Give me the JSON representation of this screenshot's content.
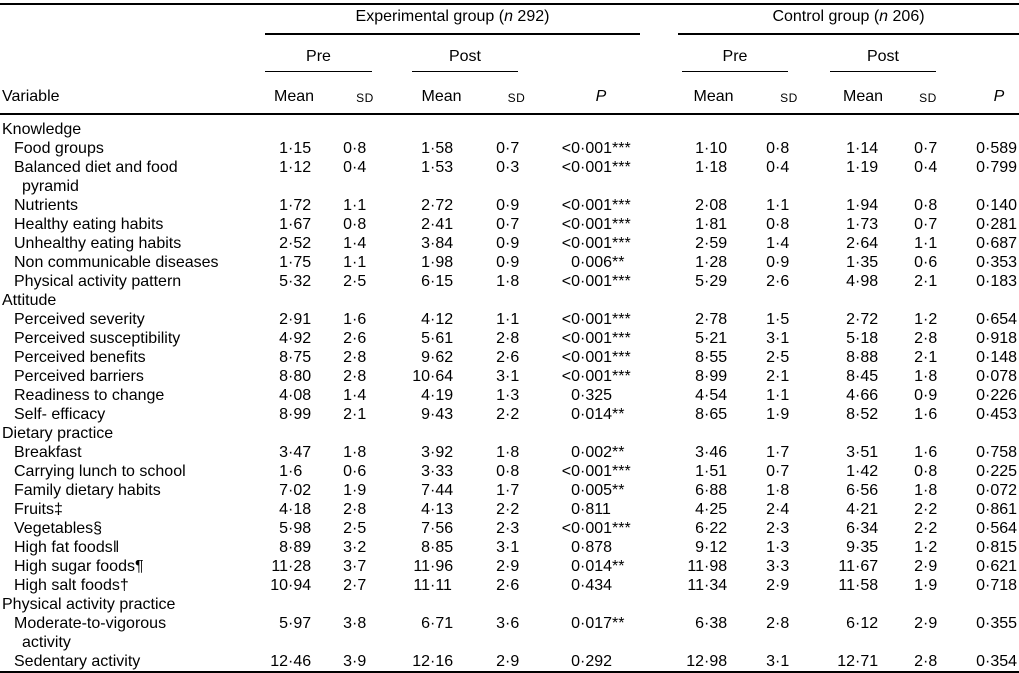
{
  "header": {
    "variable_label": "Variable",
    "groups": [
      {
        "prefix": "Experimental group (",
        "n": "n",
        "suffix": " 292)"
      },
      {
        "prefix": "Control group (",
        "n": "n",
        "suffix": " 206)"
      }
    ],
    "pre_label": "Pre",
    "post_label": "Post",
    "mean_label": "Mean",
    "sd_label": "SD",
    "p_label": "P"
  },
  "sections": [
    {
      "title": "Knowledge",
      "rows": [
        {
          "label": "Food groups",
          "exp": [
            "1·15",
            "0·8",
            "1·58",
            "0·7",
            "<0·001***"
          ],
          "ctrl": [
            "1·10",
            "0·8",
            "1·14",
            "0·7",
            "0·589"
          ]
        },
        {
          "label": "Balanced diet and food",
          "label2": "pyramid",
          "exp": [
            "1·12",
            "0·4",
            "1·53",
            "0·3",
            "<0·001***"
          ],
          "ctrl": [
            "1·18",
            "0·4",
            "1·19",
            "0·4",
            "0·799"
          ]
        },
        {
          "label": "Nutrients",
          "exp": [
            "1·72",
            "1·1",
            "2·72",
            "0·9",
            "<0·001***"
          ],
          "ctrl": [
            "2·08",
            "1·1",
            "1·94",
            "0·8",
            "0·140"
          ]
        },
        {
          "label": "Healthy eating habits",
          "exp": [
            "1·67",
            "0·8",
            "2·41",
            "0·7",
            "<0·001***"
          ],
          "ctrl": [
            "1·81",
            "0·8",
            "1·73",
            "0·7",
            "0·281"
          ]
        },
        {
          "label": "Unhealthy eating habits",
          "exp": [
            "2·52",
            "1·4",
            "3·84",
            "0·9",
            "<0·001***"
          ],
          "ctrl": [
            "2·59",
            "1·4",
            "2·64",
            "1·1",
            "0·687"
          ]
        },
        {
          "label": "Non communicable diseases",
          "exp": [
            "1·75",
            "1·1",
            "1·98",
            "0·9",
            "0·006**"
          ],
          "ctrl": [
            "1·28",
            "0·9",
            "1·35",
            "0·6",
            "0·353"
          ]
        },
        {
          "label": "Physical activity pattern",
          "exp": [
            "5·32",
            "2·5",
            "6·15",
            "1·8",
            "<0·001***"
          ],
          "ctrl": [
            "5·29",
            "2·6",
            "4·98",
            "2·1",
            "0·183"
          ]
        }
      ]
    },
    {
      "title": "Attitude",
      "rows": [
        {
          "label": "Perceived severity",
          "exp": [
            "2·91",
            "1·6",
            "4·12",
            "1·1",
            "<0·001***"
          ],
          "ctrl": [
            "2·78",
            "1·5",
            "2·72",
            "1·2",
            "0·654"
          ]
        },
        {
          "label": "Perceived susceptibility",
          "exp": [
            "4·92",
            "2·6",
            "5·61",
            "2·8",
            "<0·001***"
          ],
          "ctrl": [
            "5·21",
            "3·1",
            "5·18",
            "2·8",
            "0·918"
          ]
        },
        {
          "label": "Perceived benefits",
          "exp": [
            "8·75",
            "2·8",
            "9·62",
            "2·6",
            "<0·001***"
          ],
          "ctrl": [
            "8·55",
            "2·5",
            "8·88",
            "2·1",
            "0·148"
          ]
        },
        {
          "label": "Perceived barriers",
          "exp": [
            "8·80",
            "2·8",
            "10·64",
            "3·1",
            "<0·001***"
          ],
          "ctrl": [
            "8·99",
            "2·1",
            "8·45",
            "1·8",
            "0·078"
          ]
        },
        {
          "label": "Readiness to change",
          "exp": [
            "4·08",
            "1·4",
            "4·19",
            "1·3",
            "0·325"
          ],
          "ctrl": [
            "4·54",
            "1·1",
            "4·66",
            "0·9",
            "0·226"
          ]
        },
        {
          "label": "Self- efficacy",
          "exp": [
            "8·99",
            "2·1",
            "9·43",
            "2·2",
            "0·014**"
          ],
          "ctrl": [
            "8·65",
            "1·9",
            "8·52",
            "1·6",
            "0·453"
          ]
        }
      ]
    },
    {
      "title": "Dietary practice",
      "rows": [
        {
          "label": "Breakfast",
          "exp": [
            "3·47",
            "1·8",
            "3·92",
            "1·8",
            "0·002**"
          ],
          "ctrl": [
            "3·46",
            "1·7",
            "3·51",
            "1·6",
            "0·758"
          ]
        },
        {
          "label": "Carrying lunch to school",
          "exp": [
            "1·6",
            "0·6",
            "3·33",
            "0·8",
            "<0·001***"
          ],
          "ctrl": [
            "1·51",
            "0·7",
            "1·42",
            "0·8",
            "0·225"
          ]
        },
        {
          "label": "Family dietary habits",
          "exp": [
            "7·02",
            "1·9",
            "7·44",
            "1·7",
            "0·005**"
          ],
          "ctrl": [
            "6·88",
            "1·8",
            "6·56",
            "1·8",
            "0·072"
          ]
        },
        {
          "label": "Fruits‡",
          "exp": [
            "4·18",
            "2·8",
            "4·13",
            "2·2",
            "0·811"
          ],
          "ctrl": [
            "4·25",
            "2·4",
            "4·21",
            "2·2",
            "0·861"
          ]
        },
        {
          "label": "Vegetables§",
          "exp": [
            "5·98",
            "2·5",
            "7·56",
            "2·3",
            "<0·001***"
          ],
          "ctrl": [
            "6·22",
            "2·3",
            "6·34",
            "2·2",
            "0·564"
          ]
        },
        {
          "label": "High fat foods‖",
          "exp": [
            "8·89",
            "3·2",
            "8·85",
            "3·1",
            "0·878"
          ],
          "ctrl": [
            "9·12",
            "1·3",
            "9·35",
            "1·2",
            "0·815"
          ]
        },
        {
          "label": "High sugar foods¶",
          "exp": [
            "11·28",
            "3·7",
            "11·96",
            "2·9",
            "0·014**"
          ],
          "ctrl": [
            "11·98",
            "3·3",
            "11·67",
            "2·9",
            "0·621"
          ]
        },
        {
          "label": "High salt foods†",
          "exp": [
            "10·94",
            "2·7",
            "11·11",
            "2·6",
            "0·434"
          ],
          "ctrl": [
            "11·34",
            "2·9",
            "11·58",
            "1·9",
            "0·718"
          ]
        }
      ]
    },
    {
      "title": "Physical activity practice",
      "rows": [
        {
          "label": "Moderate-to-vigorous",
          "label2": "activity",
          "exp": [
            "5·97",
            "3·8",
            "6·71",
            "3·6",
            "0·017**"
          ],
          "ctrl": [
            "6·38",
            "2·8",
            "6·12",
            "2·9",
            "0·355"
          ]
        },
        {
          "label": "Sedentary activity",
          "exp": [
            "12·46",
            "3·9",
            "12·16",
            "2·9",
            "0·292"
          ],
          "ctrl": [
            "12·98",
            "3·1",
            "12·71",
            "2·8",
            "0·354"
          ]
        }
      ]
    }
  ]
}
